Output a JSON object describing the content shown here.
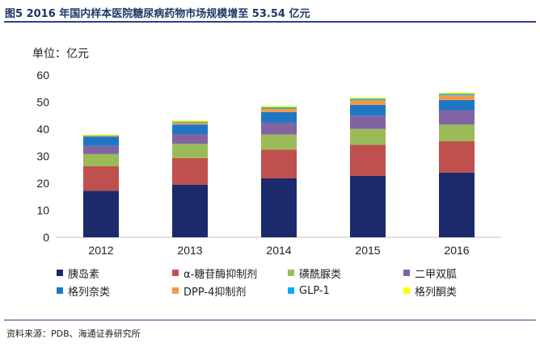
{
  "figure": {
    "title": "图5  2016 年国内样本医院糖尿病药物市场规模增至 53.54 亿元",
    "source": "资料来源：PDB、海通证券研究所"
  },
  "chart_data": {
    "type": "bar",
    "stacked": true,
    "unit_label": "单位：亿元",
    "categories": [
      "2012",
      "2013",
      "2014",
      "2015",
      "2016"
    ],
    "ylim": [
      0,
      60
    ],
    "yticks": [
      0,
      10,
      20,
      30,
      40,
      50,
      60
    ],
    "grid": false,
    "legend_position": "bottom",
    "series": [
      {
        "name": "胰岛素",
        "color": "#1b2a6b",
        "values": [
          17.2,
          19.4,
          21.8,
          22.7,
          23.9
        ]
      },
      {
        "name": "α-糖苷酶抑制剂",
        "color": "#c0504d",
        "values": [
          9.1,
          9.9,
          10.6,
          11.5,
          11.6
        ]
      },
      {
        "name": "磺酰脲类",
        "color": "#9bbb59",
        "values": [
          4.5,
          5.3,
          5.6,
          5.9,
          6.2
        ]
      },
      {
        "name": "二甲双胍",
        "color": "#8064a2",
        "values": [
          3.0,
          3.6,
          4.4,
          4.9,
          5.3
        ]
      },
      {
        "name": "格列奈类",
        "color": "#1f77c4",
        "values": [
          3.4,
          3.5,
          3.9,
          4.0,
          3.8
        ]
      },
      {
        "name": "DPP-4抑制剂",
        "color": "#f79646",
        "values": [
          0.3,
          0.8,
          1.3,
          1.7,
          1.8
        ]
      },
      {
        "name": "GLP-1",
        "color": "#00b0f0",
        "values": [
          0.2,
          0.3,
          0.5,
          0.5,
          0.5
        ]
      },
      {
        "name": "格列酮类",
        "color": "#ffff00",
        "values": [
          0.3,
          0.4,
          0.5,
          0.5,
          0.4
        ]
      }
    ]
  }
}
